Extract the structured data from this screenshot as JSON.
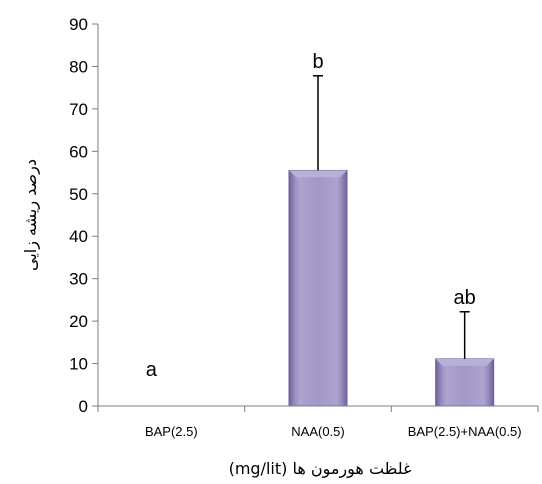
{
  "chart_data": {
    "type": "bar",
    "title": "",
    "xlabel": "غلظت هورمون ها (mg/lit)",
    "ylabel": "درصد ریشه زایی",
    "ylim": [
      0,
      90
    ],
    "yticks": [
      0,
      10,
      20,
      30,
      40,
      50,
      60,
      70,
      80,
      90
    ],
    "categories": [
      "BAP(2.5)",
      "NAA(0.5)",
      "BAP(2.5)+NAA(0.5)"
    ],
    "values": [
      0,
      55.5,
      11.1
    ],
    "error_upper": [
      0,
      77.8,
      22.2
    ],
    "significance_letters": [
      "a",
      "b",
      "ab"
    ],
    "grid": false,
    "legend": "none",
    "colors": {
      "bar": "#9a8fc0",
      "bar_light": "#b9b0d8",
      "bar_dark": "#6a5d99",
      "axis": "#7f7f7f"
    }
  }
}
